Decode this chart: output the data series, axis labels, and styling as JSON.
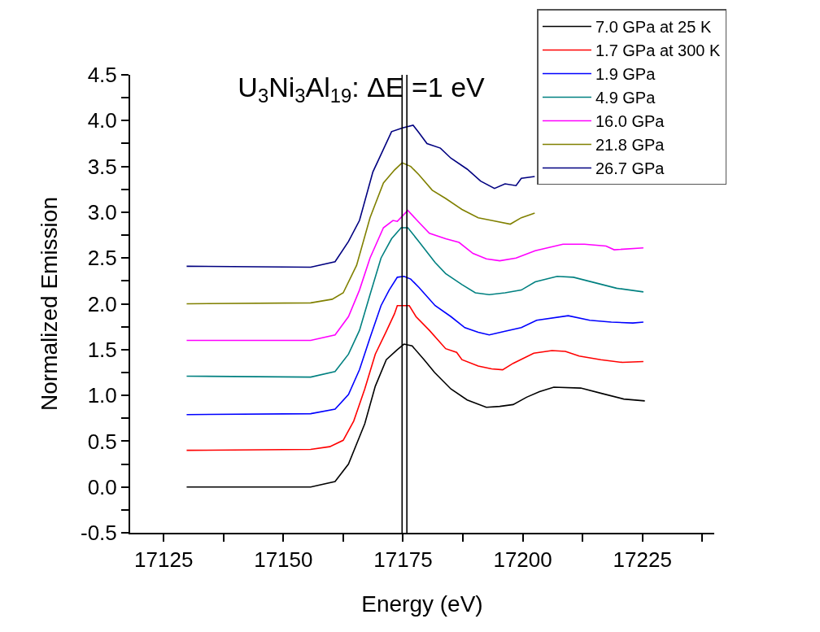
{
  "chart_data": {
    "type": "line",
    "title": "U$_{3}$Ni$_{3}$Al$_{19}$: ΔE =1 eV",
    "xlabel": "Energy (eV)",
    "ylabel": "Normalized Emission",
    "xlim": [
      17118,
      17240
    ],
    "ylim": [
      -0.5,
      4.5
    ],
    "xticks": [
      17125,
      {
        "value": 17137.5,
        "label": null
      },
      17150,
      {
        "value": 17162.5,
        "label": null
      },
      17175,
      {
        "value": 17187.5,
        "label": null
      },
      17200,
      {
        "value": 17212.5,
        "label": null
      },
      17225,
      {
        "value": 17237.5,
        "label": null
      }
    ],
    "yticks": [
      {
        "value": -0.5,
        "label": "-0.5"
      },
      {
        "value": -0.25,
        "label": null
      },
      {
        "value": 0,
        "label": "0.0"
      },
      {
        "value": 0.25,
        "label": null
      },
      {
        "value": 0.5,
        "label": "0.5"
      },
      {
        "value": 0.75,
        "label": null
      },
      {
        "value": 1,
        "label": "1.0"
      },
      {
        "value": 1.25,
        "label": null
      },
      {
        "value": 1.5,
        "label": "1.5"
      },
      {
        "value": 1.75,
        "label": null
      },
      {
        "value": 2,
        "label": "2.0"
      },
      {
        "value": 2.25,
        "label": null
      },
      {
        "value": 2.5,
        "label": "2.5"
      },
      {
        "value": 2.75,
        "label": null
      },
      {
        "value": 3,
        "label": "3.0"
      },
      {
        "value": 3.25,
        "label": null
      },
      {
        "value": 3.5,
        "label": "3.5"
      },
      {
        "value": 3.75,
        "label": null
      },
      {
        "value": 4,
        "label": "4.0"
      },
      {
        "value": 4.25,
        "label": null
      },
      {
        "value": 4.5,
        "label": "4.5"
      }
    ],
    "grid": false,
    "legend": "top right",
    "marker": "none",
    "line_style": "solid",
    "series": [
      {
        "name": "7.0 GPa at 25 K",
        "color": "#000000",
        "x": [
          17129.8,
          17155.7,
          17160.8,
          17163.6,
          17167.0,
          17169.2,
          17171.5,
          17173.8,
          17175.2,
          17176.9,
          17179.4,
          17181.6,
          17185.0,
          17188.4,
          17192.4,
          17195.2,
          17198.0,
          17200.8,
          17203.5,
          17206.5,
          17212.1,
          17216.6,
          17221.1,
          17225.5
        ],
        "values": [
          0.0,
          0.0,
          0.06,
          0.25,
          0.69,
          1.1,
          1.39,
          1.5,
          1.56,
          1.54,
          1.39,
          1.25,
          1.07,
          0.95,
          0.87,
          0.88,
          0.9,
          0.98,
          1.04,
          1.09,
          1.08,
          1.02,
          0.96,
          0.94
        ]
      },
      {
        "name": "1.7 GPa at 300 K",
        "color": "#ff0000",
        "x": [
          17129.8,
          17155.7,
          17159.7,
          17162.5,
          17164.7,
          17167.0,
          17169.2,
          17171.5,
          17173.2,
          17173.8,
          17176.3,
          17177.7,
          17180.5,
          17183.9,
          17186.2,
          17187.3,
          17190.7,
          17193.5,
          17195.8,
          17198.0,
          17202.3,
          17206.1,
          17208.9,
          17211.8,
          17216.3,
          17220.8,
          17225.2
        ],
        "values": [
          0.4,
          0.41,
          0.44,
          0.51,
          0.72,
          1.07,
          1.45,
          1.7,
          1.89,
          1.98,
          1.98,
          1.86,
          1.71,
          1.51,
          1.47,
          1.39,
          1.32,
          1.29,
          1.28,
          1.35,
          1.46,
          1.49,
          1.48,
          1.43,
          1.39,
          1.36,
          1.37
        ]
      },
      {
        "name": "1.9 GPa",
        "color": "#0000ff",
        "x": [
          17129.8,
          17155.7,
          17160.8,
          17163.6,
          17165.9,
          17168.1,
          17170.4,
          17172.1,
          17173.8,
          17175.2,
          17176.6,
          17178.3,
          17181.7,
          17185.0,
          17187.9,
          17190.7,
          17193.0,
          17196.3,
          17199.7,
          17202.9,
          17209.5,
          17214.0,
          17218.5,
          17223.0,
          17225.2
        ],
        "values": [
          0.79,
          0.8,
          0.85,
          1.01,
          1.28,
          1.63,
          1.98,
          2.15,
          2.29,
          2.3,
          2.27,
          2.18,
          1.98,
          1.86,
          1.74,
          1.69,
          1.66,
          1.7,
          1.74,
          1.82,
          1.87,
          1.82,
          1.8,
          1.79,
          1.8
        ]
      },
      {
        "name": "4.9 GPa",
        "color": "#008080",
        "x": [
          17129.8,
          17155.7,
          17160.8,
          17163.6,
          17165.9,
          17168.1,
          17170.4,
          17172.6,
          17174.6,
          17176.0,
          17178.3,
          17181.7,
          17183.9,
          17187.3,
          17190.1,
          17193.0,
          17196.3,
          17199.7,
          17202.6,
          17207.2,
          17210.6,
          17215.1,
          17219.6,
          17225.2
        ],
        "values": [
          1.21,
          1.2,
          1.26,
          1.45,
          1.71,
          2.1,
          2.5,
          2.71,
          2.83,
          2.83,
          2.68,
          2.45,
          2.33,
          2.21,
          2.12,
          2.1,
          2.12,
          2.15,
          2.24,
          2.3,
          2.29,
          2.23,
          2.17,
          2.13
        ]
      },
      {
        "name": "16.0 GPa",
        "color": "#ff00ff",
        "x": [
          17129.8,
          17155.7,
          17160.8,
          17163.6,
          17165.9,
          17168.1,
          17170.9,
          17172.9,
          17173.8,
          17176.0,
          17178.3,
          17180.5,
          17183.9,
          17186.7,
          17189.6,
          17192.4,
          17195.2,
          17198.6,
          17202.6,
          17208.4,
          17212.9,
          17217.4,
          17219.1,
          17225.2
        ],
        "values": [
          1.6,
          1.6,
          1.66,
          1.86,
          2.15,
          2.5,
          2.83,
          2.91,
          2.9,
          3.02,
          2.89,
          2.77,
          2.71,
          2.67,
          2.55,
          2.49,
          2.47,
          2.5,
          2.58,
          2.65,
          2.65,
          2.63,
          2.59,
          2.61
        ]
      },
      {
        "name": "21.8 GPa",
        "color": "#808000",
        "x": [
          17129.8,
          17155.7,
          17160.2,
          17162.5,
          17165.3,
          17168.1,
          17170.9,
          17173.2,
          17174.8,
          17176.6,
          17178.3,
          17181.1,
          17183.9,
          17187.3,
          17190.7,
          17193.5,
          17197.4,
          17199.7,
          17202.5
        ],
        "values": [
          2.0,
          2.01,
          2.05,
          2.12,
          2.42,
          2.94,
          3.32,
          3.46,
          3.54,
          3.5,
          3.41,
          3.24,
          3.15,
          3.03,
          2.94,
          2.91,
          2.87,
          2.94,
          2.99
        ]
      },
      {
        "name": "26.7 GPa",
        "color": "#000080",
        "x": [
          17129.8,
          17155.7,
          17160.8,
          17163.6,
          17165.9,
          17168.7,
          17170.4,
          17172.6,
          17174.9,
          17177.1,
          17178.3,
          17180.0,
          17182.8,
          17185.0,
          17188.4,
          17191.2,
          17194.1,
          17196.3,
          17198.6,
          17199.7,
          17202.5
        ],
        "values": [
          2.41,
          2.4,
          2.46,
          2.68,
          2.91,
          3.44,
          3.63,
          3.88,
          3.92,
          3.95,
          3.87,
          3.75,
          3.7,
          3.59,
          3.47,
          3.34,
          3.26,
          3.31,
          3.29,
          3.37,
          3.39
        ]
      }
    ],
    "ref_lines": [
      {
        "axis": "x",
        "value": 17174.8,
        "color": "#000000"
      },
      {
        "axis": "x",
        "value": 17175.8,
        "color": "#000000"
      }
    ]
  }
}
